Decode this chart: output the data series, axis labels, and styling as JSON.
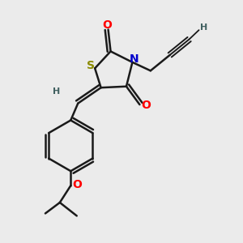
{
  "background_color": "#ebebeb",
  "atom_colors": {
    "S": "#8b8b00",
    "N": "#0000cc",
    "O": "#ff0000",
    "C": "#000000",
    "H": "#406060"
  },
  "bond_color": "#1a1a1a",
  "bond_width": 1.8,
  "font_size_atoms": 10,
  "font_size_H": 8,
  "figsize": [
    3.0,
    3.0
  ],
  "dpi": 100
}
